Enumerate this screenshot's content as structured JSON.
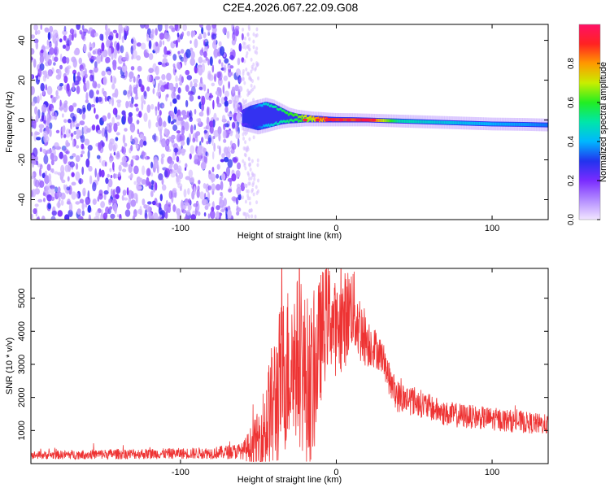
{
  "chart_data": {
    "title": "C2E4.2026.067.22.09.G08",
    "panels": [
      {
        "type": "heatmap",
        "xlabel": "Height of straight line (km)",
        "ylabel": "Frequency (Hz)",
        "xlim": [
          -196,
          136
        ],
        "ylim": [
          -50,
          48
        ],
        "xticks": [
          -100,
          0,
          100
        ],
        "yticks": [
          -40,
          -20,
          0,
          20,
          40
        ],
        "grid": false,
        "trace": {
          "x": [
            -60,
            -55,
            -50,
            -45,
            -40,
            -35,
            -30,
            -25,
            -20,
            -15,
            -10,
            -5,
            0,
            10,
            20,
            40,
            60,
            80,
            100,
            120,
            136
          ],
          "upper": [
            4,
            6,
            7,
            8,
            7,
            5,
            3,
            2,
            1.5,
            1,
            0.8,
            0.5,
            0.3,
            0.2,
            0,
            -0.5,
            -1,
            -1.5,
            -2,
            -2.2,
            -2.5
          ],
          "lower": [
            -2,
            -3,
            -4,
            -3,
            -2,
            -1,
            -0.5,
            -0.3,
            0,
            0,
            0,
            0,
            0,
            0,
            0,
            -0.5,
            -1,
            -1.5,
            -2,
            -2.2,
            -2.5
          ],
          "amplitude": [
            0.25,
            0.3,
            0.35,
            0.45,
            0.5,
            0.55,
            0.6,
            0.62,
            0.7,
            0.75,
            0.85,
            0.9,
            0.88,
            0.85,
            0.92,
            0.5,
            0.45,
            0.42,
            0.4,
            0.38,
            0.35
          ]
        },
        "noise_region": {
          "x_range": [
            -196,
            -60
          ],
          "amplitude_range": [
            0.05,
            0.25
          ]
        }
      },
      {
        "type": "line",
        "xlabel": "Height of straight line (km)",
        "ylabel": "SNR (10 * v/v)",
        "xlim": [
          -196,
          136
        ],
        "ylim": [
          0,
          5900
        ],
        "xticks": [
          -100,
          0,
          100
        ],
        "yticks": [
          1000,
          2000,
          3000,
          4000,
          5000
        ],
        "grid": false,
        "series": [
          {
            "color": "#ee3333",
            "x": [
              -196,
              -170,
              -140,
              -110,
              -80,
              -60,
              -50,
              -45,
              -40,
              -35,
              -30,
              -25,
              -20,
              -15,
              -10,
              -5,
              0,
              5,
              10,
              15,
              20,
              25,
              30,
              35,
              40,
              50,
              60,
              70,
              80,
              90,
              100,
              110,
              120,
              130,
              136
            ],
            "values": [
              250,
              270,
              290,
              300,
              320,
              380,
              700,
              1200,
              1800,
              2600,
              3000,
              3200,
              2600,
              2400,
              3800,
              4600,
              4000,
              4300,
              4800,
              4100,
              3700,
              3500,
              3200,
              2400,
              2000,
              1900,
              1700,
              1500,
              1450,
              1400,
              1350,
              1300,
              1250,
              1200,
              1180
            ],
            "envelope": [
              120,
              140,
              160,
              160,
              180,
              250,
              900,
              1500,
              2200,
              2400,
              2600,
              2500,
              2600,
              2400,
              2000,
              1600,
              1400,
              1500,
              1300,
              1100,
              800,
              600,
              500,
              500,
              500,
              450,
              400,
              380,
              380,
              350,
              350,
              350,
              330,
              320,
              300
            ]
          }
        ]
      }
    ],
    "colorbar": {
      "label": "Normalized spectral amplitude",
      "range": [
        0,
        1
      ],
      "ticks": [
        0.0,
        0.2,
        0.4,
        0.6,
        0.8
      ],
      "colormap": [
        "#f2e6ff",
        "#b38cff",
        "#7a2cff",
        "#2233ee",
        "#00b7ff",
        "#00e6aa",
        "#22ee22",
        "#c8ee00",
        "#ff9900",
        "#ff2222",
        "#ff1166"
      ]
    }
  }
}
